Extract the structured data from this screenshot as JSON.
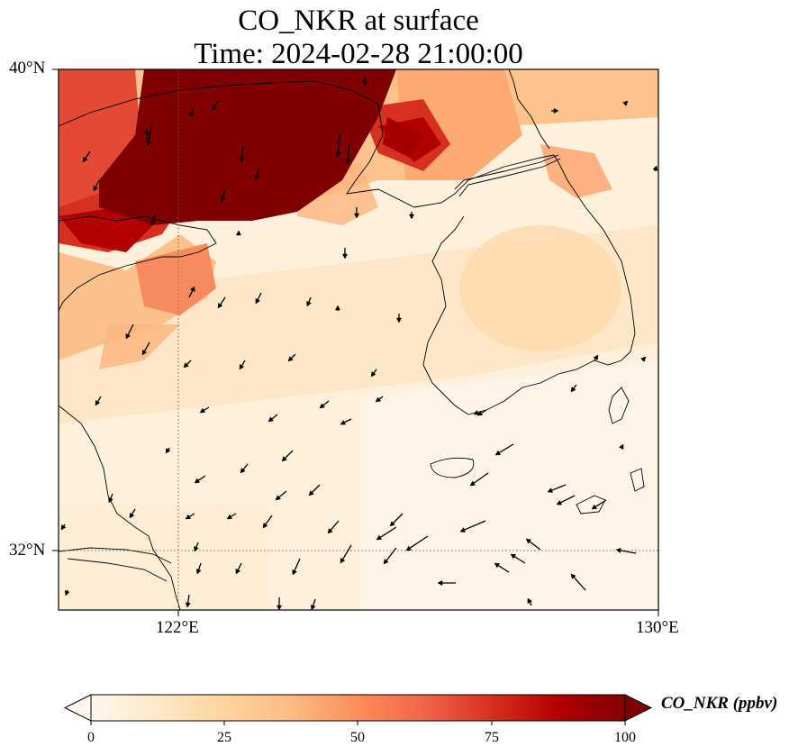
{
  "title": {
    "line1": "CO_NKR at surface",
    "line2": "Time: 2024-02-28 21:00:00"
  },
  "map": {
    "lon_range": [
      120.0,
      130.0
    ],
    "lat_range": [
      31.0,
      40.0
    ],
    "gridlines": "dotted",
    "lat_ticks": [
      {
        "value": 40,
        "label": "40°N"
      },
      {
        "value": 32,
        "label": "32°N"
      }
    ],
    "lon_ticks": [
      {
        "value": 122,
        "label": "122°E"
      },
      {
        "value": 130,
        "label": "130°E"
      }
    ],
    "field": "CO_NKR concentration (ppbv), high over Bohai/northwest, low southeast",
    "vectors": "wind arrows, mostly southwestward/westward"
  },
  "colorbar": {
    "label": "CO_NKR (ppbv)",
    "ticks": [
      "0",
      "25",
      "50",
      "75",
      "100"
    ],
    "min": 0,
    "max": 100,
    "colormap": "OrRd",
    "extend": "both"
  }
}
